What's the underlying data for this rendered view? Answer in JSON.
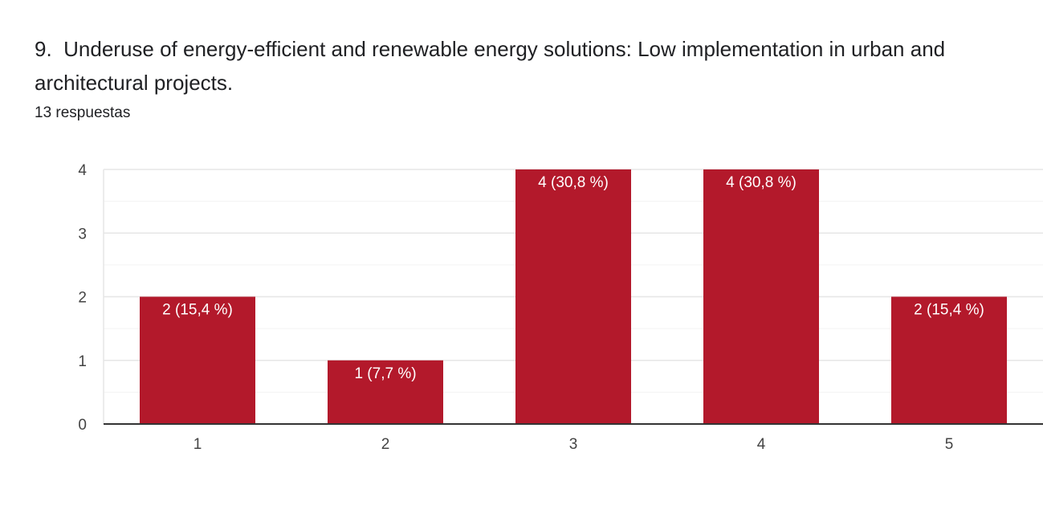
{
  "question": {
    "title": "9.  Underuse of energy-efficient and renewable energy solutions: Low implementation in urban and architectural projects.",
    "response_count": "13 respuestas"
  },
  "colors": {
    "bar": "#b3192b",
    "grid_major": "#e6e6e6",
    "grid_minor": "#f3f3f3",
    "axis": "#333333"
  },
  "chart_data": {
    "type": "bar",
    "categories": [
      "1",
      "2",
      "3",
      "4",
      "5"
    ],
    "values": [
      2,
      1,
      4,
      4,
      2
    ],
    "data_labels": [
      "2 (15,4 %)",
      "1 (7,7 %)",
      "4 (30,8 %)",
      "4 (30,8 %)",
      "2 (15,4 %)"
    ],
    "yticks": [
      "0",
      "1",
      "2",
      "3",
      "4"
    ],
    "ylim": [
      0,
      4
    ],
    "title": "",
    "xlabel": "",
    "ylabel": "",
    "grid": true
  }
}
